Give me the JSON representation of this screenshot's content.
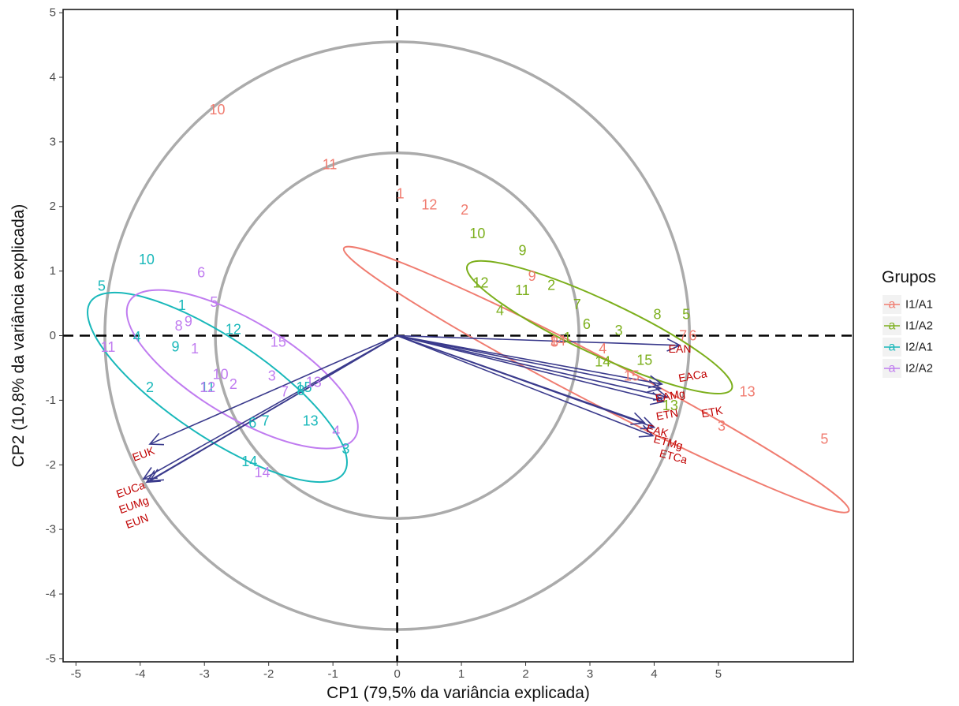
{
  "chart_data": {
    "type": "scatter",
    "subtype": "pca-biplot",
    "xlabel": "CP1 (79,5% da variância explicada)",
    "ylabel": "CP2 (10,8% da variância explicada)",
    "xlim": [
      -5.2,
      7.1
    ],
    "ylim": [
      -5.05,
      5.05
    ],
    "x_ticks": [
      -5,
      -4,
      -3,
      -2,
      -1,
      0,
      1,
      2,
      3,
      4,
      5
    ],
    "y_ticks": [
      -5,
      -4,
      -3,
      -2,
      -1,
      0,
      1,
      2,
      3,
      4,
      5
    ],
    "grid": false,
    "reference_lines": {
      "x": 0,
      "y": 0,
      "style": "dashed"
    },
    "circles": [
      {
        "center": [
          0,
          0
        ],
        "radius": 2.83,
        "color": "#ababab"
      },
      {
        "center": [
          0,
          0
        ],
        "radius": 4.55,
        "color": "#ababab"
      }
    ],
    "legend": {
      "title": "Grupos",
      "position": "right",
      "glyph": "a",
      "entries": [
        {
          "name": "I1/A1",
          "color": "#f07c70"
        },
        {
          "name": "I1/A2",
          "color": "#7caf1c"
        },
        {
          "name": "I2/A1",
          "color": "#19b8ba"
        },
        {
          "name": "I2/A2",
          "color": "#c07cf0"
        }
      ]
    },
    "series": [
      {
        "name": "I1/A1",
        "color": "#f07c70",
        "ellipse": {
          "center": [
            3.1,
            -0.68
          ],
          "semi_major": 4.43,
          "semi_minor": 0.35,
          "angle_deg": -27.5
        },
        "points": [
          {
            "label": "1",
            "x": 0.05,
            "y": 2.2
          },
          {
            "label": "2",
            "x": 1.05,
            "y": 1.95
          },
          {
            "label": "3",
            "x": 5.05,
            "y": -1.4
          },
          {
            "label": "4",
            "x": 3.2,
            "y": -0.2
          },
          {
            "label": "5",
            "x": 6.65,
            "y": -1.6
          },
          {
            "label": "6",
            "x": 4.6,
            "y": 0
          },
          {
            "label": "7",
            "x": 4.45,
            "y": 0
          },
          {
            "label": "8",
            "x": 2.45,
            "y": -0.1
          },
          {
            "label": "9",
            "x": 2.1,
            "y": 0.92
          },
          {
            "label": "10",
            "x": -2.8,
            "y": 3.5
          },
          {
            "label": "11",
            "x": -1.05,
            "y": 2.65
          },
          {
            "label": "12",
            "x": 0.5,
            "y": 2.03
          },
          {
            "label": "13",
            "x": 5.45,
            "y": -0.87
          },
          {
            "label": "14",
            "x": 2.5,
            "y": -0.08
          },
          {
            "label": "15",
            "x": 3.65,
            "y": -0.62
          }
        ]
      },
      {
        "name": "I1/A2",
        "color": "#7caf1c",
        "ellipse": {
          "center": [
            3.15,
            0.13
          ],
          "semi_major": 2.27,
          "semi_minor": 0.42,
          "angle_deg": -25
        },
        "points": [
          {
            "label": "1",
            "x": 2.65,
            "y": -0.03
          },
          {
            "label": "2",
            "x": 2.4,
            "y": 0.78
          },
          {
            "label": "3",
            "x": 3.45,
            "y": 0.08
          },
          {
            "label": "4",
            "x": 1.6,
            "y": 0.39
          },
          {
            "label": "5",
            "x": 4.5,
            "y": 0.33
          },
          {
            "label": "6",
            "x": 2.95,
            "y": 0.18
          },
          {
            "label": "7",
            "x": 2.8,
            "y": 0.48
          },
          {
            "label": "8",
            "x": 4.05,
            "y": 0.33
          },
          {
            "label": "9",
            "x": 1.95,
            "y": 1.32
          },
          {
            "label": "10",
            "x": 1.25,
            "y": 1.58
          },
          {
            "label": "11",
            "x": 1.95,
            "y": 0.7
          },
          {
            "label": "12",
            "x": 1.3,
            "y": 0.82
          },
          {
            "label": "13",
            "x": 4.25,
            "y": -1.08
          },
          {
            "label": "14",
            "x": 3.2,
            "y": -0.4
          },
          {
            "label": "15",
            "x": 3.85,
            "y": -0.38
          }
        ]
      },
      {
        "name": "I2/A1",
        "color": "#19b8ba",
        "ellipse": {
          "center": [
            -2.8,
            -0.8
          ],
          "semi_major": 2.38,
          "semi_minor": 0.76,
          "angle_deg": -34
        },
        "points": [
          {
            "label": "1",
            "x": -3.35,
            "y": 0.47
          },
          {
            "label": "2",
            "x": -3.85,
            "y": -0.8
          },
          {
            "label": "3",
            "x": -0.8,
            "y": -1.75
          },
          {
            "label": "4",
            "x": -4.05,
            "y": -0.02
          },
          {
            "label": "5",
            "x": -4.6,
            "y": 0.77
          },
          {
            "label": "6",
            "x": -2.25,
            "y": -1.35
          },
          {
            "label": "7",
            "x": -2.05,
            "y": -1.32
          },
          {
            "label": "8",
            "x": -1.5,
            "y": -0.85
          },
          {
            "label": "9",
            "x": -3.45,
            "y": -0.17
          },
          {
            "label": "10",
            "x": -3.9,
            "y": 1.18
          },
          {
            "label": "11",
            "x": -2.95,
            "y": -0.8
          },
          {
            "label": "12",
            "x": -2.55,
            "y": 0.1
          },
          {
            "label": "13",
            "x": -1.35,
            "y": -1.32
          },
          {
            "label": "14",
            "x": -2.3,
            "y": -1.95
          },
          {
            "label": "15",
            "x": -1.45,
            "y": -0.8
          }
        ]
      },
      {
        "name": "I2/A2",
        "color": "#c07cf0",
        "ellipse": {
          "center": [
            -2.41,
            -0.52
          ],
          "semi_major": 2.05,
          "semi_minor": 0.74,
          "angle_deg": -31
        },
        "points": [
          {
            "label": "1",
            "x": -3.15,
            "y": -0.2
          },
          {
            "label": "2",
            "x": -2.55,
            "y": -0.75
          },
          {
            "label": "3",
            "x": -1.95,
            "y": -0.62
          },
          {
            "label": "4",
            "x": -0.95,
            "y": -1.48
          },
          {
            "label": "5",
            "x": -2.85,
            "y": 0.52
          },
          {
            "label": "6",
            "x": -3.05,
            "y": 0.98
          },
          {
            "label": "7",
            "x": -1.75,
            "y": -0.87
          },
          {
            "label": "8",
            "x": -3.4,
            "y": 0.15
          },
          {
            "label": "9",
            "x": -3.25,
            "y": 0.22
          },
          {
            "label": "10",
            "x": -2.75,
            "y": -0.6
          },
          {
            "label": "11",
            "x": -4.5,
            "y": -0.18
          },
          {
            "label": "12",
            "x": -2.95,
            "y": -0.8
          },
          {
            "label": "13",
            "x": -1.3,
            "y": -0.72
          },
          {
            "label": "14",
            "x": -2.1,
            "y": -2.12
          },
          {
            "label": "15",
            "x": -1.85,
            "y": -0.1
          }
        ]
      }
    ],
    "loadings": {
      "color": "#3a3a8c",
      "label_color": "#c00000",
      "vectors": [
        {
          "label": "EAN",
          "x": 4.4,
          "y": -0.15,
          "label_x": 4.4,
          "label_y": -0.2,
          "label_angle": 0
        },
        {
          "label": "EACa",
          "x": 4.12,
          "y": -0.75,
          "label_x": 4.6,
          "label_y": -0.62,
          "label_angle": -10
        },
        {
          "label": "EAMg",
          "x": 4.1,
          "y": -0.82,
          "label_x": 4.25,
          "label_y": -0.93,
          "label_angle": -10
        },
        {
          "label": "ETN",
          "x": 4.15,
          "y": -1.02,
          "label_x": 4.2,
          "label_y": -1.22,
          "label_angle": -10
        },
        {
          "label": "ETK",
          "x": 4.2,
          "y": -0.95,
          "label_x": 4.9,
          "label_y": -1.18,
          "label_angle": -10
        },
        {
          "label": "EAK",
          "x": 3.85,
          "y": -1.35,
          "label_x": 4.05,
          "label_y": -1.47,
          "label_angle": 15
        },
        {
          "label": "ETMg",
          "x": 4.0,
          "y": -1.42,
          "label_x": 4.22,
          "label_y": -1.65,
          "label_angle": 15
        },
        {
          "label": "ETCa",
          "x": 3.98,
          "y": -1.55,
          "label_x": 4.3,
          "label_y": -1.87,
          "label_angle": 15
        },
        {
          "label": "EUK",
          "x": -3.85,
          "y": -1.68,
          "label_x": -3.95,
          "label_y": -1.83,
          "label_angle": -20
        },
        {
          "label": "EUCa",
          "x": -3.95,
          "y": -2.22,
          "label_x": -4.15,
          "label_y": -2.38,
          "label_angle": -20
        },
        {
          "label": "EUMg",
          "x": -3.9,
          "y": -2.27,
          "label_x": -4.1,
          "label_y": -2.62,
          "label_angle": -20
        },
        {
          "label": "EUN",
          "x": -3.85,
          "y": -2.25,
          "label_x": -4.05,
          "label_y": -2.87,
          "label_angle": -20
        }
      ]
    }
  }
}
